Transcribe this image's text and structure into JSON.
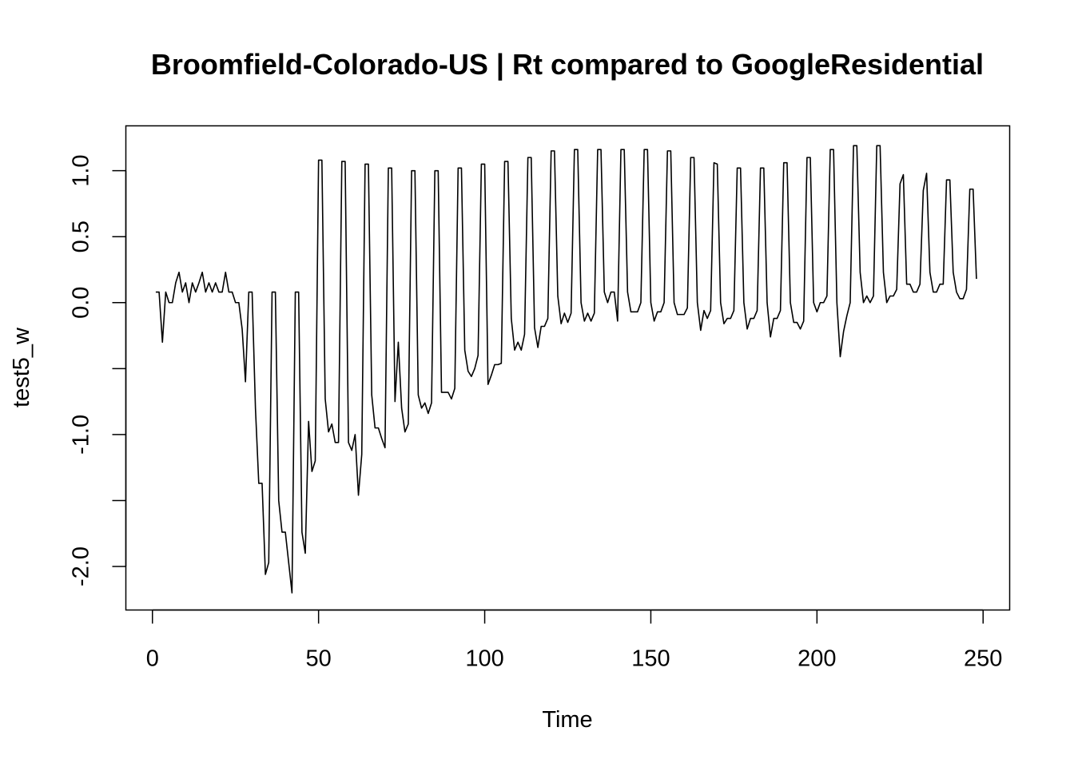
{
  "chart_data": {
    "type": "line",
    "title": "Broomfield-Colorado-US | Rt compared to GoogleResidential",
    "xlabel": "Time",
    "ylabel": "test5_w",
    "xlim": [
      -8,
      258
    ],
    "ylim": [
      -2.33,
      1.34
    ],
    "x_ticks": [
      0,
      50,
      100,
      150,
      200,
      250
    ],
    "x_tick_labels": [
      "0",
      "50",
      "100",
      "150",
      "200",
      "250"
    ],
    "y_ticks": [
      -2.0,
      -1.5,
      -1.0,
      -0.5,
      0.0,
      0.5,
      1.0
    ],
    "y_tick_labels": [
      "-2.0",
      "",
      "-1.0",
      "",
      "0.0",
      "0.5",
      "1.0"
    ],
    "grid": false,
    "legend": "none",
    "series": [
      {
        "line_color": "#000000",
        "x": [
          1,
          2,
          3,
          4,
          5,
          6,
          7,
          8,
          9,
          10,
          11,
          12,
          13,
          14,
          15,
          16,
          17,
          18,
          19,
          20,
          21,
          22,
          23,
          24,
          25,
          26,
          27,
          28,
          29,
          30,
          31,
          32,
          33,
          34,
          35,
          36,
          37,
          38,
          39,
          40,
          41,
          42,
          43,
          44,
          45,
          46,
          47,
          48,
          49,
          50,
          51,
          52,
          53,
          54,
          55,
          56,
          57,
          58,
          59,
          60,
          61,
          62,
          63,
          64,
          65,
          66,
          67,
          68,
          69,
          70,
          71,
          72,
          73,
          74,
          75,
          76,
          77,
          78,
          79,
          80,
          81,
          82,
          83,
          84,
          85,
          86,
          87,
          88,
          89,
          90,
          91,
          92,
          93,
          94,
          95,
          96,
          97,
          98,
          99,
          100,
          101,
          102,
          103,
          104,
          105,
          106,
          107,
          108,
          109,
          110,
          111,
          112,
          113,
          114,
          115,
          116,
          117,
          118,
          119,
          120,
          121,
          122,
          123,
          124,
          125,
          126,
          127,
          128,
          129,
          130,
          131,
          132,
          133,
          134,
          135,
          136,
          137,
          138,
          139,
          140,
          141,
          142,
          143,
          144,
          145,
          146,
          147,
          148,
          149,
          150,
          151,
          152,
          153,
          154,
          155,
          156,
          157,
          158,
          159,
          160,
          161,
          162,
          163,
          164,
          165,
          166,
          167,
          168,
          169,
          170,
          171,
          172,
          173,
          174,
          175,
          176,
          177,
          178,
          179,
          180,
          181,
          182,
          183,
          184,
          185,
          186,
          187,
          188,
          189,
          190,
          191,
          192,
          193,
          194,
          195,
          196,
          197,
          198,
          199,
          200,
          201,
          202,
          203,
          204,
          205,
          206,
          207,
          208,
          209,
          210,
          211,
          212,
          213,
          214,
          215,
          216,
          217,
          218,
          219,
          220,
          221,
          222,
          223,
          224,
          225,
          226,
          227,
          228,
          229,
          230,
          231,
          232,
          233,
          234,
          235,
          236,
          237,
          238,
          239,
          240,
          241,
          242,
          243,
          244,
          245,
          246,
          247,
          248
        ],
        "y": [
          0.08,
          0.08,
          -0.3,
          0.08,
          0.0,
          0.0,
          0.15,
          0.23,
          0.08,
          0.15,
          0.0,
          0.15,
          0.08,
          0.15,
          0.23,
          0.08,
          0.15,
          0.08,
          0.15,
          0.08,
          0.08,
          0.23,
          0.08,
          0.08,
          0.0,
          0.0,
          -0.2,
          -0.6,
          0.08,
          0.08,
          -0.8,
          -1.37,
          -1.37,
          -2.06,
          -1.97,
          0.08,
          0.08,
          -1.5,
          -1.74,
          -1.74,
          -1.97,
          -2.2,
          0.08,
          0.08,
          -1.74,
          -1.9,
          -0.9,
          -1.28,
          -1.2,
          1.08,
          1.08,
          -0.73,
          -0.98,
          -0.92,
          -1.06,
          -1.06,
          1.07,
          1.07,
          -1.06,
          -1.12,
          -1.0,
          -1.46,
          -1.15,
          1.05,
          1.05,
          -0.7,
          -0.95,
          -0.95,
          -1.03,
          -1.1,
          1.02,
          1.02,
          -0.75,
          -0.3,
          -0.8,
          -0.98,
          -0.92,
          1.0,
          1.0,
          -0.7,
          -0.8,
          -0.76,
          -0.84,
          -0.76,
          1.0,
          1.0,
          -0.68,
          -0.68,
          -0.68,
          -0.73,
          -0.65,
          1.02,
          1.02,
          -0.36,
          -0.52,
          -0.56,
          -0.5,
          -0.4,
          1.05,
          1.05,
          -0.62,
          -0.55,
          -0.47,
          -0.47,
          -0.46,
          1.07,
          1.07,
          -0.12,
          -0.36,
          -0.3,
          -0.36,
          -0.24,
          1.1,
          1.1,
          -0.19,
          -0.34,
          -0.18,
          -0.18,
          -0.12,
          1.15,
          1.15,
          0.05,
          -0.16,
          -0.08,
          -0.15,
          -0.08,
          1.16,
          1.16,
          0.0,
          -0.14,
          -0.08,
          -0.14,
          -0.08,
          1.16,
          1.16,
          0.08,
          0.0,
          0.08,
          0.08,
          -0.14,
          1.16,
          1.16,
          0.08,
          -0.07,
          -0.07,
          -0.07,
          0.0,
          1.16,
          1.16,
          0.0,
          -0.14,
          -0.07,
          -0.07,
          0.0,
          1.15,
          1.15,
          0.0,
          -0.09,
          -0.09,
          -0.09,
          -0.04,
          1.1,
          1.1,
          0.0,
          -0.21,
          -0.06,
          -0.12,
          -0.06,
          1.06,
          1.05,
          0.0,
          -0.16,
          -0.12,
          -0.12,
          -0.06,
          1.02,
          1.02,
          0.0,
          -0.2,
          -0.12,
          -0.12,
          -0.06,
          1.02,
          1.02,
          0.0,
          -0.26,
          -0.12,
          -0.12,
          -0.06,
          1.06,
          1.06,
          0.0,
          -0.15,
          -0.15,
          -0.2,
          -0.14,
          1.1,
          1.1,
          0.0,
          -0.07,
          0.0,
          0.0,
          0.05,
          1.16,
          1.16,
          0.0,
          -0.41,
          -0.22,
          -0.1,
          0.0,
          1.19,
          1.19,
          0.23,
          0.0,
          0.05,
          0.0,
          0.05,
          1.19,
          1.19,
          0.23,
          0.0,
          0.05,
          0.05,
          0.1,
          0.9,
          0.97,
          0.14,
          0.14,
          0.08,
          0.08,
          0.14,
          0.85,
          0.98,
          0.23,
          0.08,
          0.08,
          0.14,
          0.14,
          0.93,
          0.93,
          0.23,
          0.08,
          0.03,
          0.03,
          0.1,
          0.86,
          0.86,
          0.18
        ]
      }
    ]
  }
}
